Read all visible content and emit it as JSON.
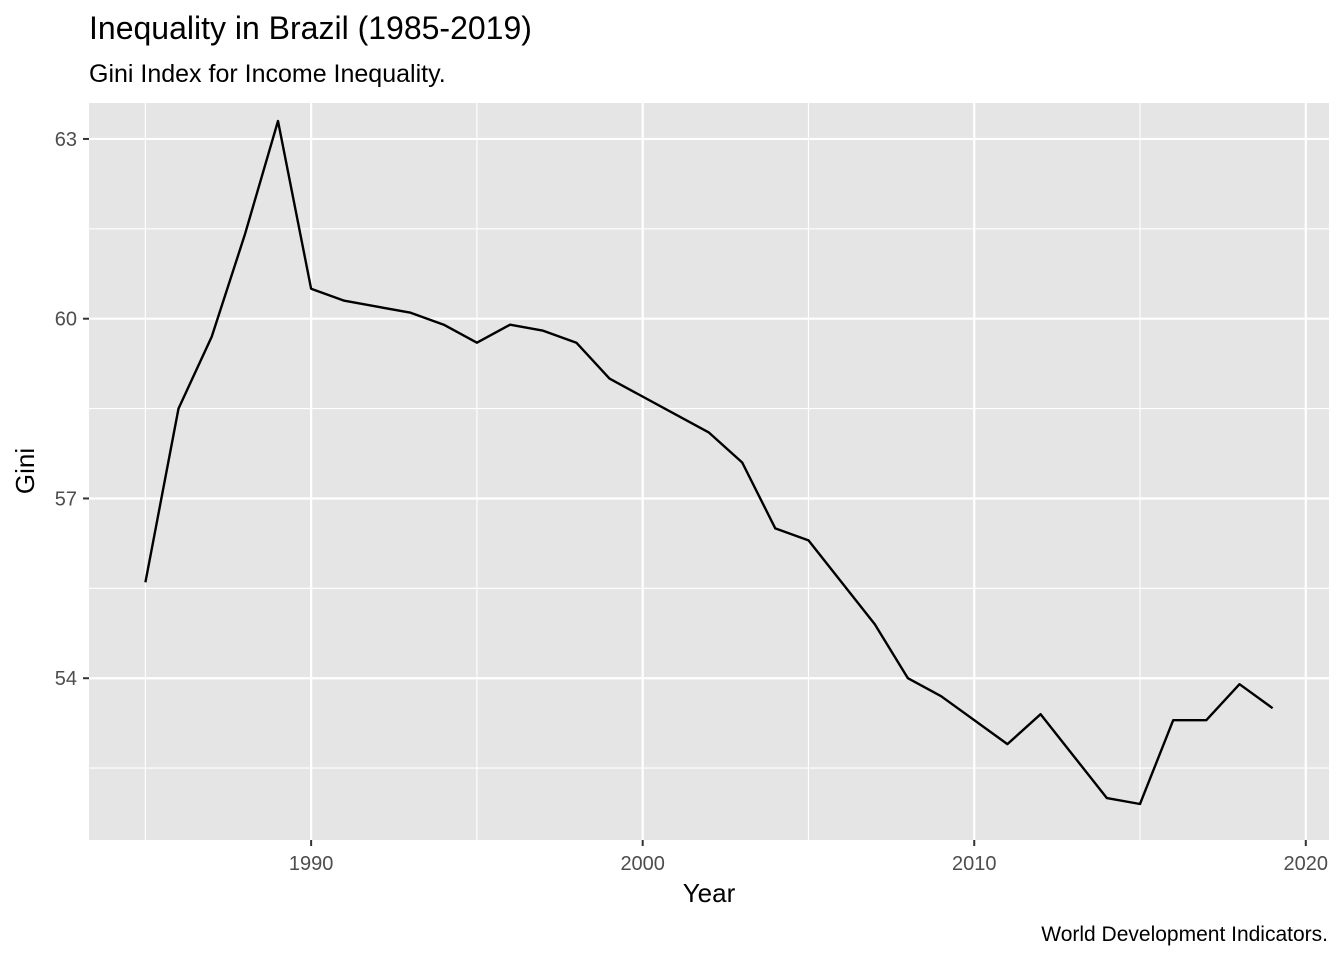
{
  "chart_data": {
    "type": "line",
    "title": "Inequality in Brazil (1985-2019)",
    "subtitle": "Gini Index for Income Inequality.",
    "xlabel": "Year",
    "ylabel": "Gini",
    "caption": "World Development Indicators.",
    "xlim": [
      1983.3,
      2020.7
    ],
    "ylim": [
      51.3,
      63.6
    ],
    "x_ticks": [
      1990,
      2000,
      2010,
      2020
    ],
    "y_ticks": [
      54,
      57,
      60,
      63
    ],
    "x_minor_ticks": [
      1985,
      1995,
      2005,
      2015
    ],
    "y_minor_ticks": [
      52.5,
      55.5,
      58.5,
      61.5
    ],
    "grid": true,
    "background": "#e5e5e5",
    "line_color": "#000000",
    "series": [
      {
        "x": [
          1985,
          1986,
          1987,
          1988,
          1989,
          1990,
          1991,
          1992,
          1993,
          1994,
          1995,
          1996,
          1997,
          1998,
          1999,
          2001,
          2002,
          2003,
          2004,
          2005,
          2006,
          2007,
          2008,
          2009,
          2011,
          2012,
          2013,
          2014,
          2015,
          2016,
          2017,
          2018,
          2019
        ],
        "values": [
          55.6,
          58.5,
          59.7,
          61.4,
          63.3,
          60.5,
          60.3,
          60.2,
          60.1,
          59.9,
          59.6,
          59.9,
          59.8,
          59.6,
          59.0,
          58.4,
          58.1,
          57.6,
          56.5,
          56.3,
          55.6,
          54.9,
          54.0,
          53.7,
          52.9,
          53.4,
          52.7,
          52.0,
          51.9,
          53.3,
          53.3,
          53.9,
          53.5
        ]
      }
    ]
  }
}
